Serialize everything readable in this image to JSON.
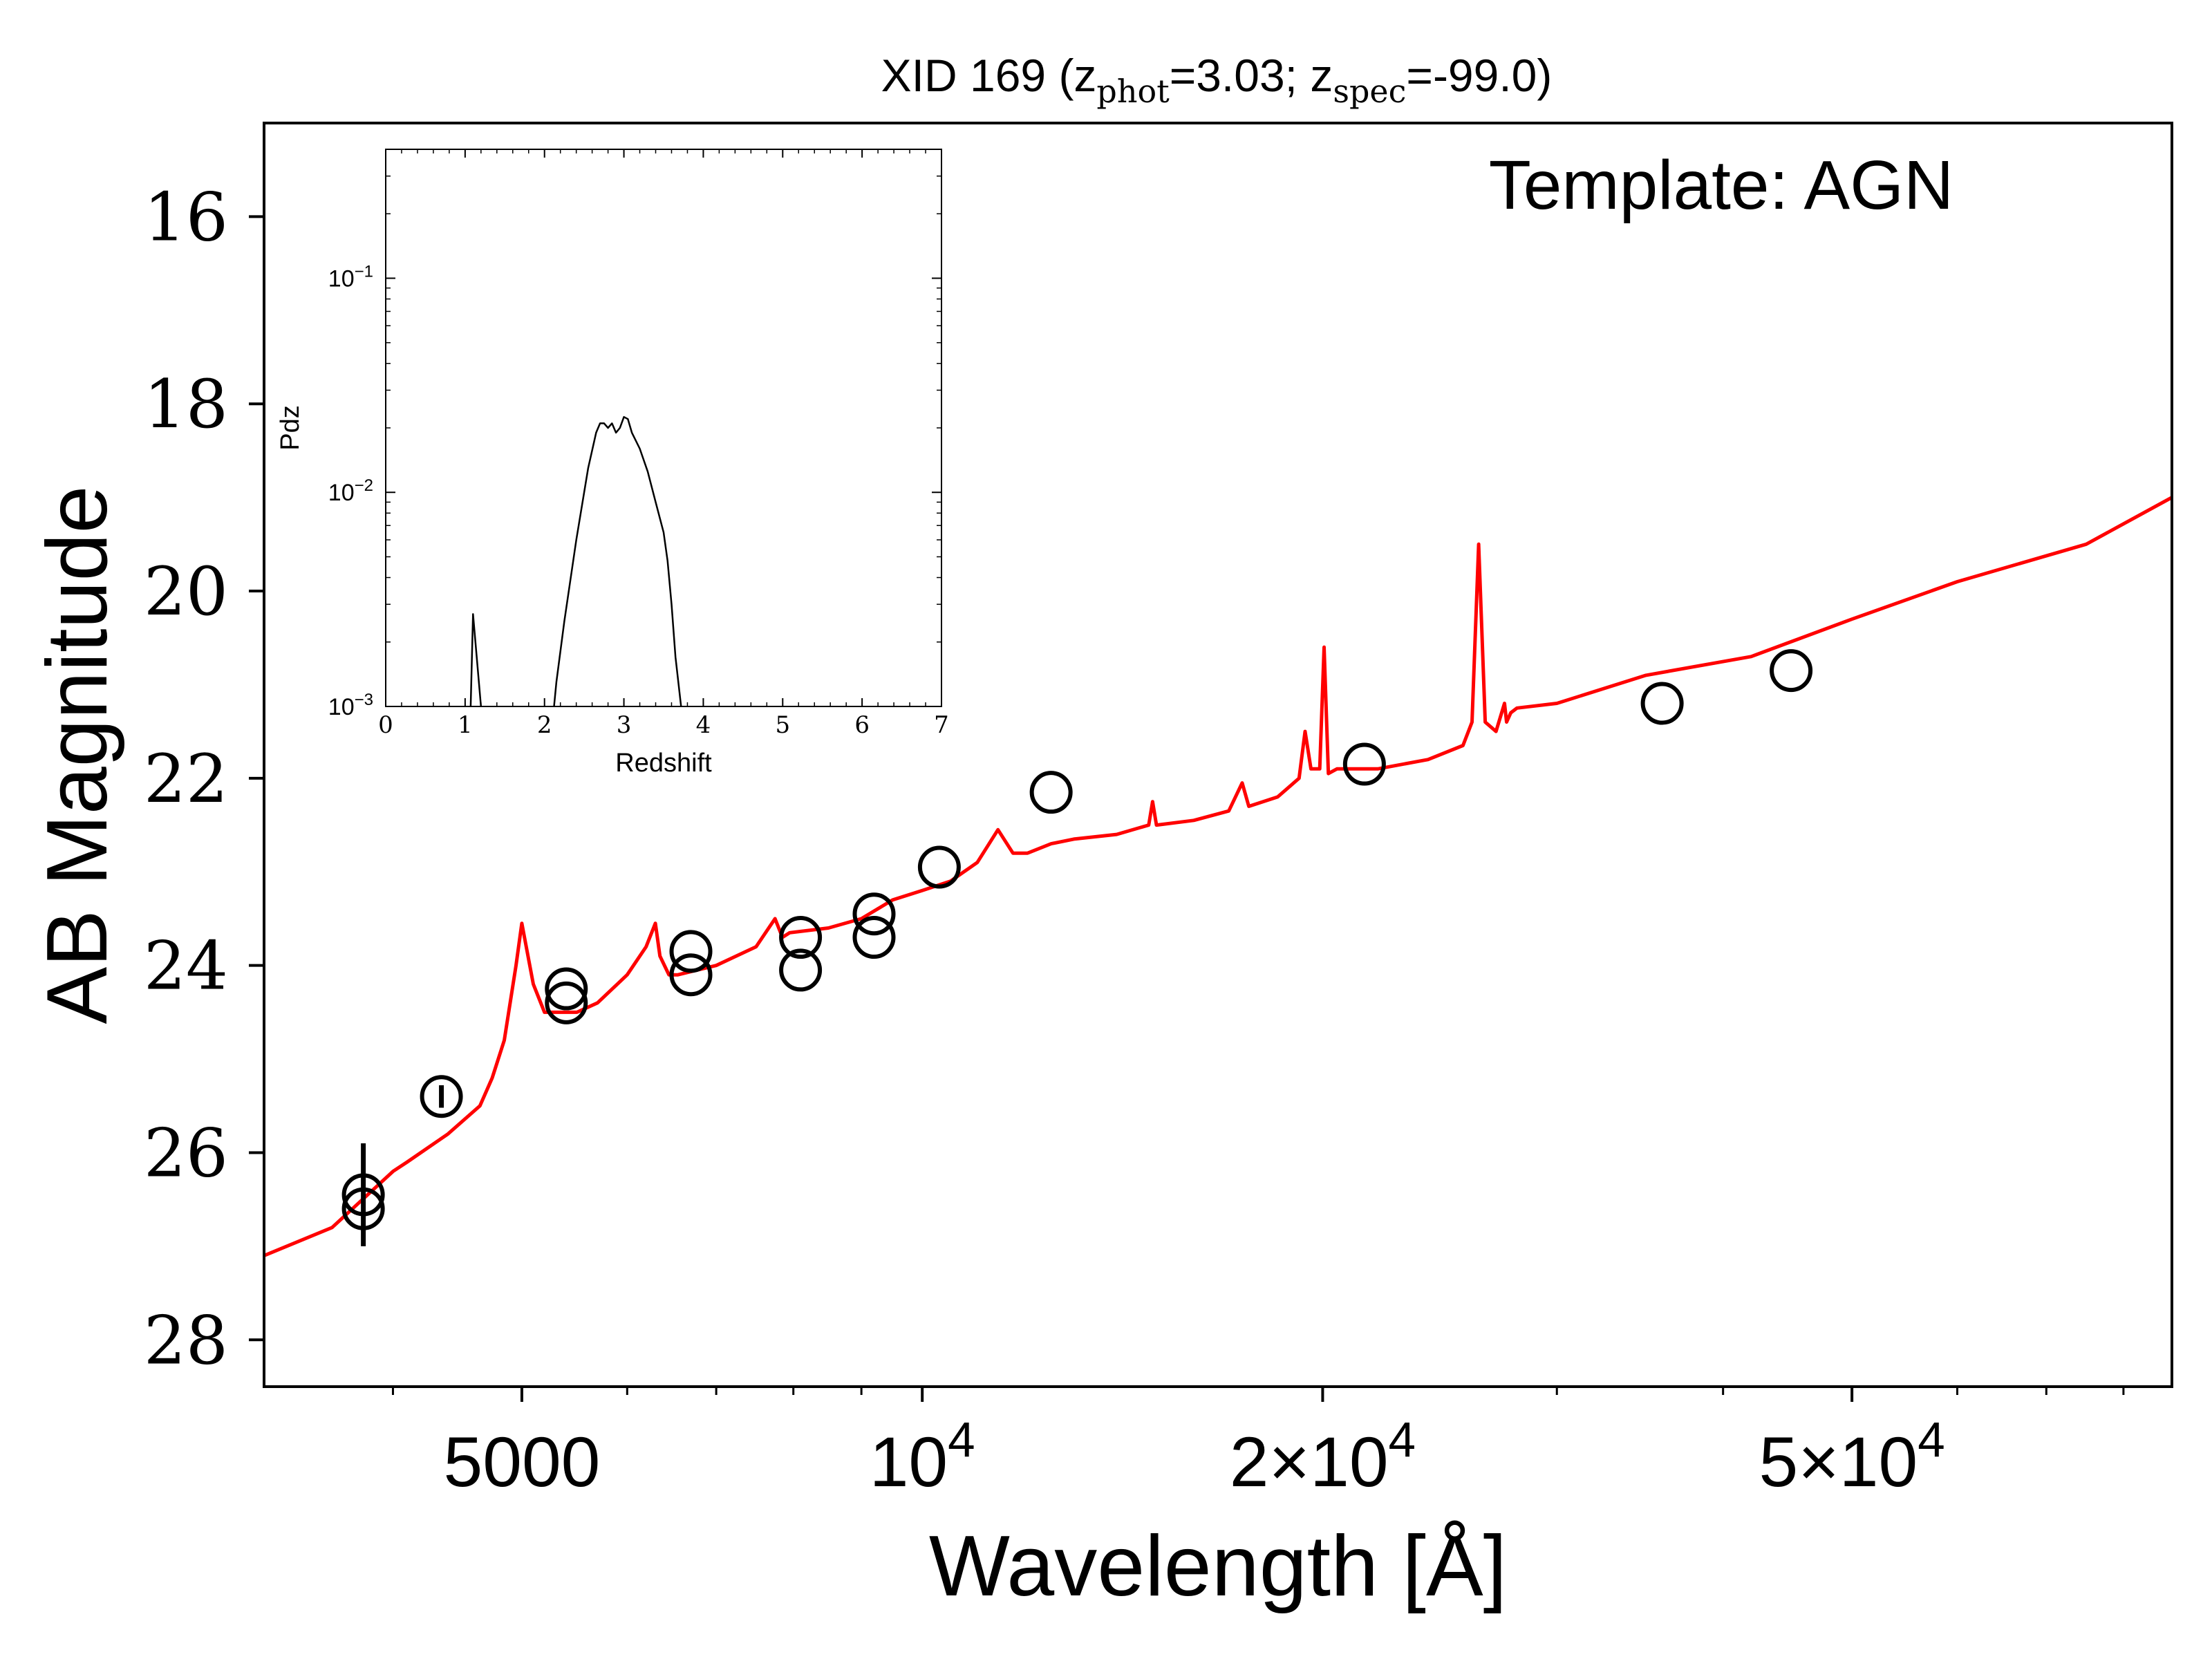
{
  "chart_data": [
    {
      "type": "scatter",
      "title": {
        "prefix": "XID 169 (z",
        "sub1": "phot",
        "mid": "=3.03; z",
        "sub2": "spec",
        "suffix": "=-99.0)"
      },
      "xlabel": "Wavelength [Å]",
      "ylabel": "AB Magnitude",
      "annotation": "Template: AGN",
      "x_scale": "log",
      "xlim": [
        3200,
        87000
      ],
      "ylim": [
        28.5,
        15
      ],
      "y_inverted": true,
      "x_ticks": [
        {
          "value": 5000,
          "base": "5000",
          "exp": ""
        },
        {
          "value": 10000,
          "base": "10",
          "exp": "4"
        },
        {
          "value": 20000,
          "base": "2×10",
          "exp": "4"
        },
        {
          "value": 50000,
          "base": "5×10",
          "exp": "4"
        }
      ],
      "y_ticks": [
        "16",
        "18",
        "20",
        "22",
        "24",
        "26",
        "28"
      ],
      "marker_color": "#000000",
      "points": [
        {
          "x": 3800,
          "y": 26.45,
          "yerr": 0.55
        },
        {
          "x": 3800,
          "y": 26.6,
          "yerr": 0
        },
        {
          "x": 4350,
          "y": 25.4,
          "yerr": 0.12
        },
        {
          "x": 5400,
          "y": 24.25,
          "yerr": 0
        },
        {
          "x": 5400,
          "y": 24.4,
          "yerr": 0
        },
        {
          "x": 6700,
          "y": 23.85,
          "yerr": 0
        },
        {
          "x": 6700,
          "y": 24.1,
          "yerr": 0
        },
        {
          "x": 8100,
          "y": 23.7,
          "yerr": 0
        },
        {
          "x": 8100,
          "y": 24.05,
          "yerr": 0
        },
        {
          "x": 9200,
          "y": 23.45,
          "yerr": 0
        },
        {
          "x": 9200,
          "y": 23.7,
          "yerr": 0
        },
        {
          "x": 10300,
          "y": 22.95,
          "yerr": 0
        },
        {
          "x": 12500,
          "y": 22.15,
          "yerr": 0
        },
        {
          "x": 21500,
          "y": 21.85,
          "yerr": 0
        },
        {
          "x": 36000,
          "y": 21.2,
          "yerr": 0
        },
        {
          "x": 45000,
          "y": 20.85,
          "yerr": 0
        }
      ],
      "series": [
        {
          "type": "line",
          "color": "#ff0000",
          "x": [
            3200,
            3600,
            4000,
            4100,
            4400,
            4650,
            4750,
            4850,
            4950,
            5000,
            5100,
            5200,
            5500,
            5700,
            6000,
            6200,
            6300,
            6350,
            6450,
            6550,
            7000,
            7500,
            7750,
            7850,
            7950,
            8500,
            9000,
            9500,
            10000,
            10500,
            11000,
            11400,
            11700,
            12000,
            12500,
            13000,
            14000,
            14800,
            14900,
            15000,
            16000,
            17000,
            17400,
            17600,
            18500,
            19200,
            19400,
            19600,
            19900,
            20050,
            20200,
            20500,
            22000,
            24000,
            25500,
            25900,
            26200,
            26500,
            27000,
            27400,
            27500,
            27700,
            28000,
            30000,
            35000,
            42000,
            50000,
            60000,
            75000,
            87000
          ],
          "y": [
            27.1,
            26.8,
            26.2,
            26.1,
            25.8,
            25.5,
            25.2,
            24.8,
            24.0,
            23.55,
            24.2,
            24.5,
            24.5,
            24.4,
            24.1,
            23.8,
            23.55,
            23.9,
            24.1,
            24.1,
            24.0,
            23.8,
            23.5,
            23.7,
            23.65,
            23.6,
            23.5,
            23.3,
            23.2,
            23.1,
            22.9,
            22.55,
            22.8,
            22.8,
            22.7,
            22.65,
            22.6,
            22.5,
            22.25,
            22.5,
            22.45,
            22.35,
            22.05,
            22.3,
            22.2,
            22.0,
            21.5,
            21.9,
            21.9,
            20.6,
            21.95,
            21.9,
            21.9,
            21.8,
            21.65,
            21.4,
            19.5,
            21.4,
            21.5,
            21.2,
            21.4,
            21.3,
            21.25,
            21.2,
            20.9,
            20.7,
            20.3,
            19.9,
            19.5,
            19.0
          ]
        }
      ]
    },
    {
      "type": "line",
      "xlabel": "Redshift",
      "ylabel": "Pdz",
      "y_scale": "log",
      "xlim": [
        0,
        7
      ],
      "ylim": [
        0.001,
        0.4
      ],
      "x_ticks": [
        "0",
        "1",
        "2",
        "3",
        "4",
        "5",
        "6",
        "7"
      ],
      "y_ticks": [
        {
          "value": 0.1,
          "base": "10",
          "exp": "−1"
        },
        {
          "value": 0.01,
          "base": "10",
          "exp": "−2"
        },
        {
          "value": 0.001,
          "base": "10",
          "exp": "−3"
        }
      ],
      "series": [
        {
          "color": "#000000",
          "x": [
            1.07,
            1.1,
            1.2
          ],
          "y": [
            0.001,
            0.0027,
            0.001
          ]
        },
        {
          "color": "#000000",
          "x": [
            2.12,
            2.15,
            2.25,
            2.4,
            2.55,
            2.65,
            2.7,
            2.75,
            2.8,
            2.85,
            2.9,
            2.95,
            3.0,
            3.05,
            3.1,
            3.2,
            3.3,
            3.4,
            3.5,
            3.55,
            3.6,
            3.65,
            3.72
          ],
          "y": [
            0.001,
            0.0013,
            0.0025,
            0.006,
            0.013,
            0.019,
            0.021,
            0.021,
            0.02,
            0.021,
            0.019,
            0.02,
            0.0225,
            0.022,
            0.019,
            0.016,
            0.0125,
            0.009,
            0.0065,
            0.0048,
            0.003,
            0.0017,
            0.001
          ]
        }
      ]
    }
  ]
}
